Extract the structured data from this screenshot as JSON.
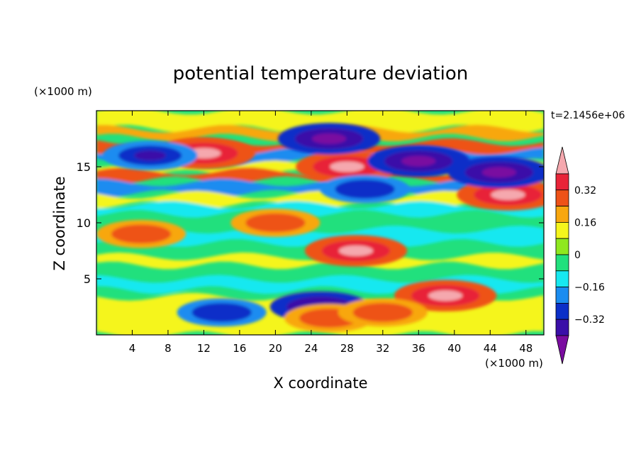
{
  "chart_data": {
    "type": "heatmap",
    "title": "potential temperature deviation",
    "xlabel": "X coordinate",
    "ylabel": "Z coordinate",
    "x_unit": "(×1000 m)",
    "y_unit": "(×1000 m)",
    "time_label": "t=2.1456e+06",
    "xlim": [
      0,
      50
    ],
    "ylim": [
      0,
      20
    ],
    "x_ticks": [
      4,
      8,
      12,
      16,
      20,
      24,
      28,
      32,
      36,
      40,
      44,
      48
    ],
    "y_ticks": [
      5,
      10,
      15
    ],
    "colorbar": {
      "levels": [
        -0.4,
        -0.32,
        -0.24,
        -0.16,
        -0.08,
        0,
        0.08,
        0.16,
        0.24,
        0.32,
        0.4
      ],
      "tick_labels": [
        "0.32",
        "0.16",
        "0",
        "−0.16",
        "−0.32"
      ],
      "colors": [
        "#7a0ca0",
        "#3a0fa8",
        "#0b2fc8",
        "#1a8cf0",
        "#17e8f0",
        "#21e07d",
        "#8fe81f",
        "#f5f51c",
        "#f8a70f",
        "#ee5218",
        "#e82438",
        "#f5a8ae"
      ],
      "extend": "both"
    },
    "features": [
      {
        "x": 12,
        "z": 16.2,
        "value": 0.42
      },
      {
        "x": 28,
        "z": 15.0,
        "value": 0.42
      },
      {
        "x": 46,
        "z": 12.5,
        "value": 0.42
      },
      {
        "x": 29,
        "z": 7.5,
        "value": 0.42
      },
      {
        "x": 39,
        "z": 3.5,
        "value": 0.42
      },
      {
        "x": 26,
        "z": 17.5,
        "value": -0.42
      },
      {
        "x": 36,
        "z": 15.5,
        "value": -0.42
      },
      {
        "x": 45,
        "z": 14.5,
        "value": -0.42
      },
      {
        "x": 30,
        "z": 13.0,
        "value": -0.3
      },
      {
        "x": 6,
        "z": 16,
        "value": -0.35
      },
      {
        "x": 25,
        "z": 2.5,
        "value": -0.4
      },
      {
        "x": 14,
        "z": 2.0,
        "value": -0.3
      },
      {
        "x": 20,
        "z": 10.0,
        "value": 0.3
      },
      {
        "x": 5,
        "z": 9,
        "value": 0.3
      },
      {
        "x": 26,
        "z": 1.5,
        "value": 0.3
      },
      {
        "x": 32,
        "z": 2.0,
        "value": 0.3
      }
    ]
  }
}
